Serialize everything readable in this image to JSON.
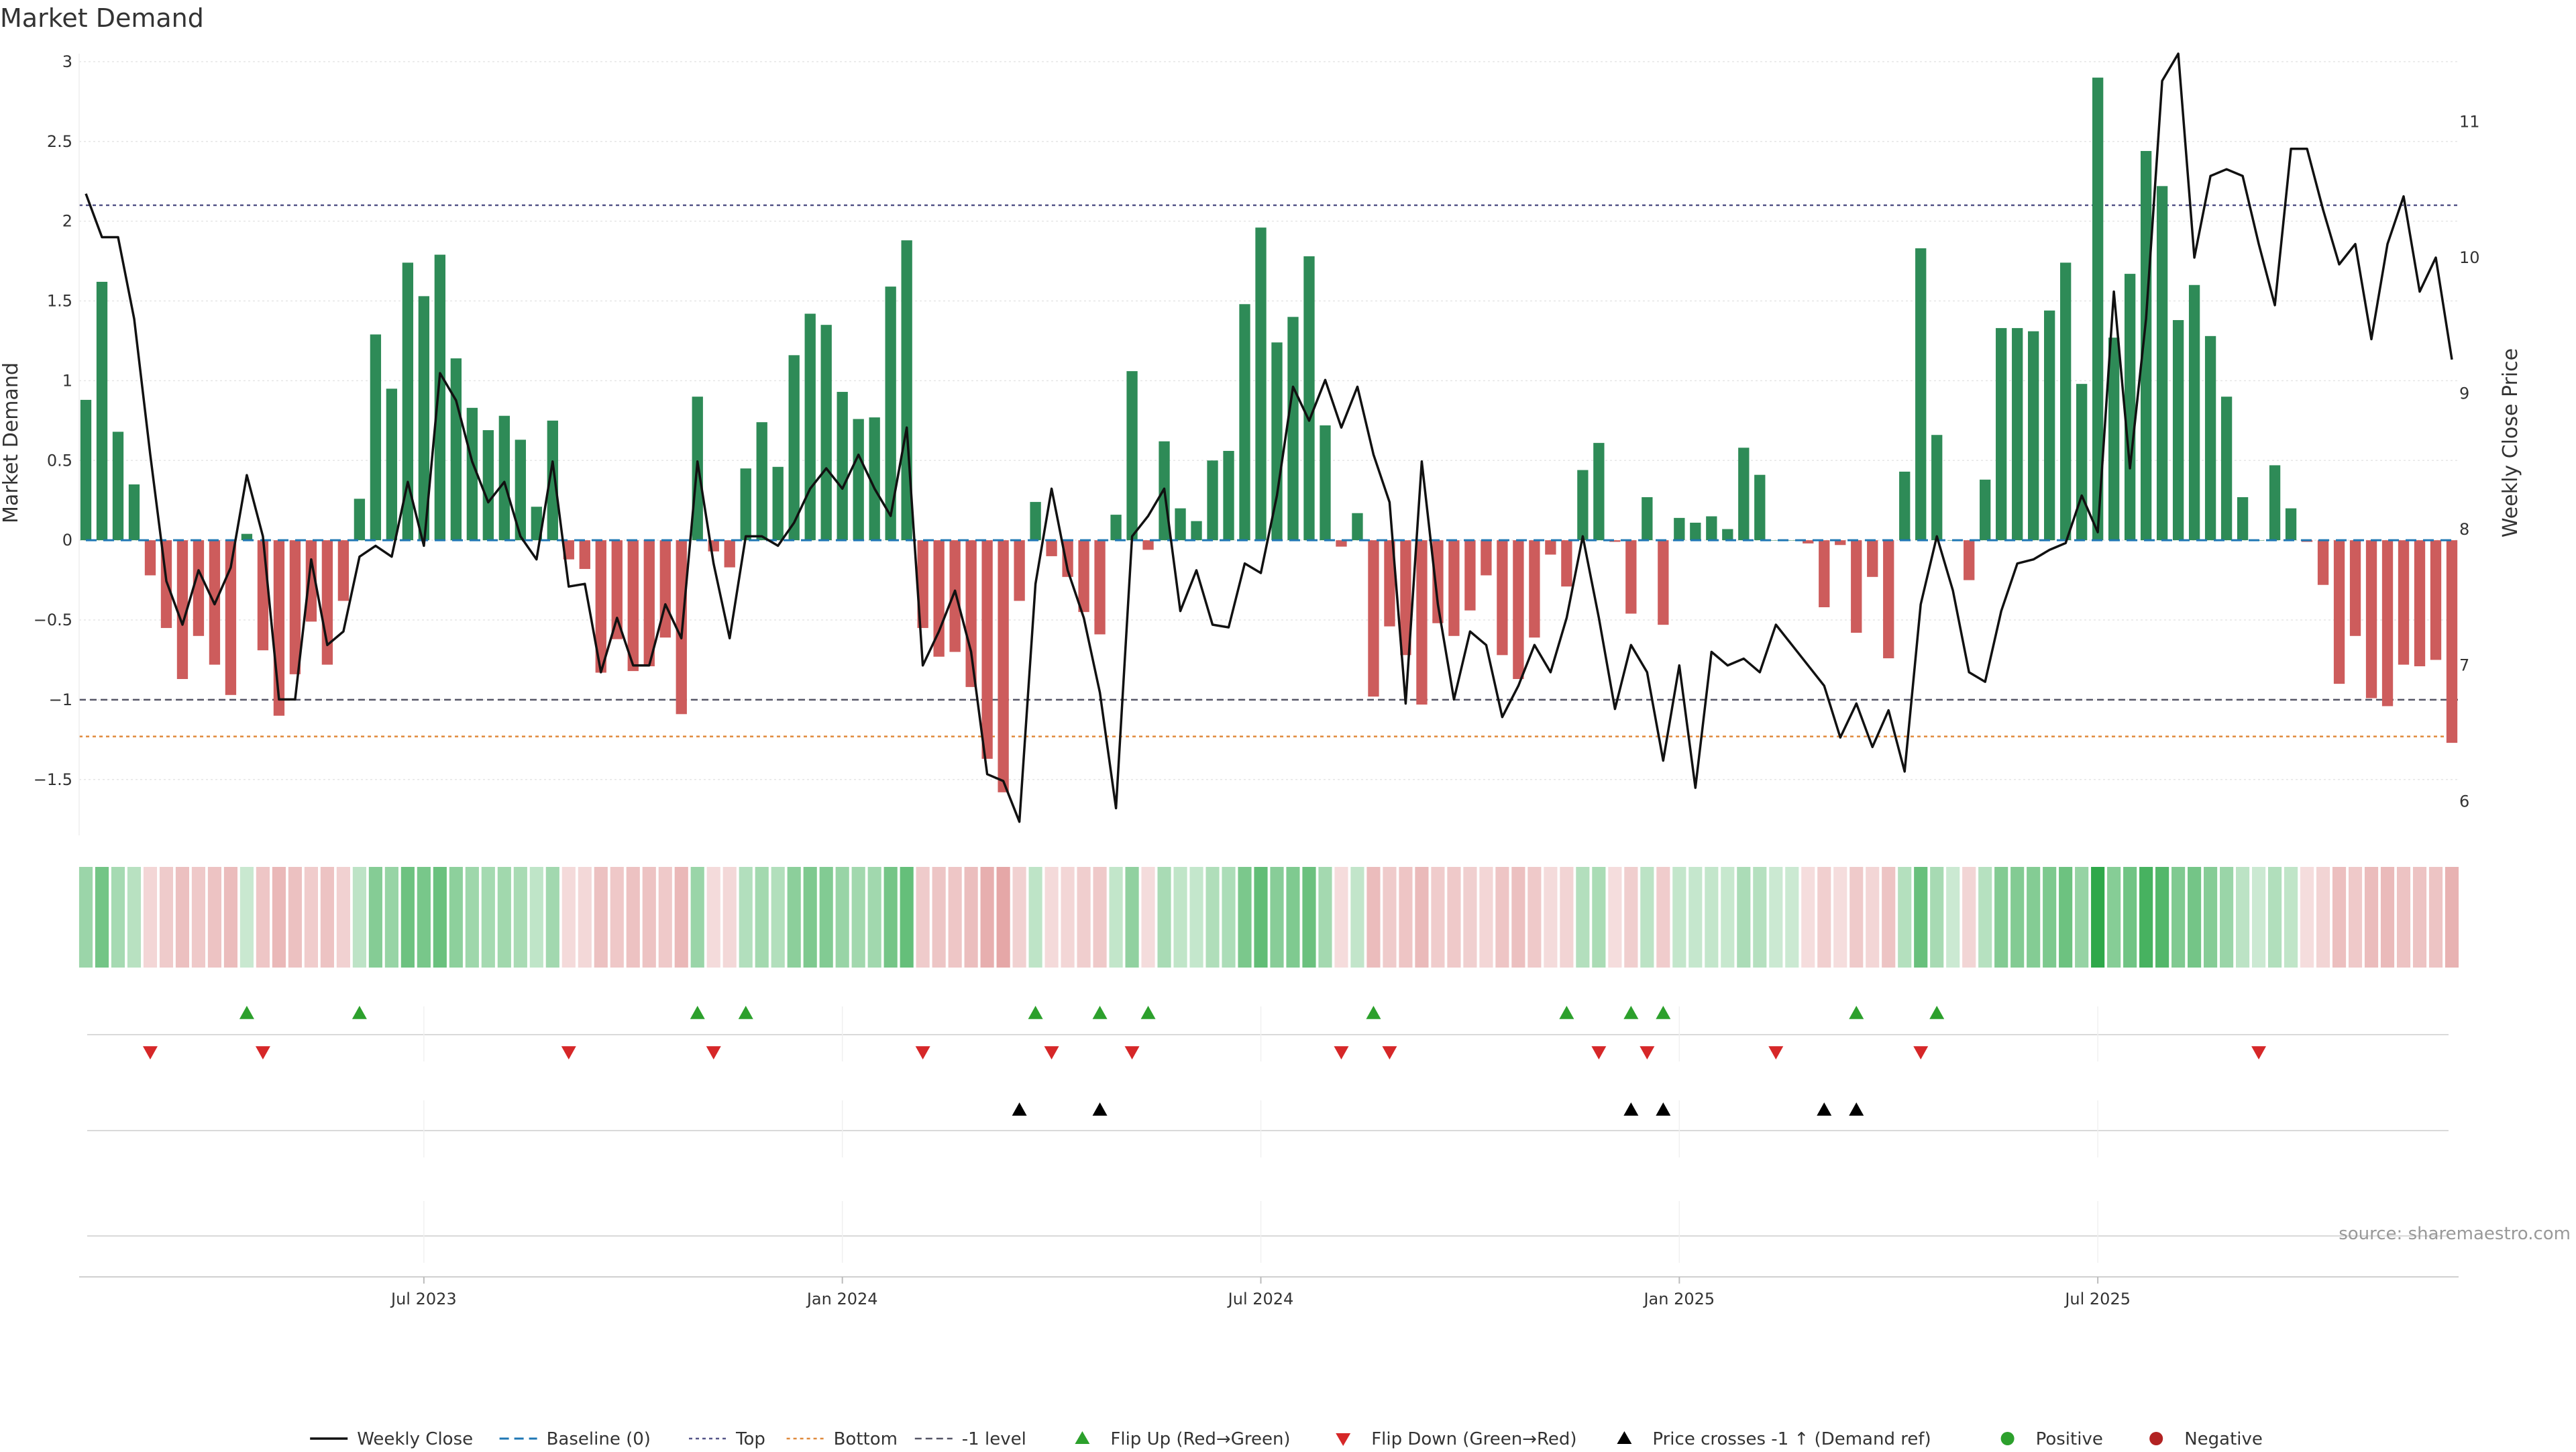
{
  "chart_data": {
    "type": "bar",
    "title": "Market Demand",
    "ylabel": "Market Demand",
    "y2label": "Weekly Close Price",
    "source": "source: sharemaestro.com",
    "ylim": [
      -1.85,
      3.05
    ],
    "y2lim": [
      5.75,
      11.5
    ],
    "yticks": [
      3,
      2.5,
      2,
      1.5,
      1,
      0.5,
      0,
      -0.5,
      -1,
      -1.5
    ],
    "ytick_labels": [
      "3",
      "2.5",
      "2",
      "1.5",
      "1",
      "0.5",
      "0",
      "−0.5",
      "−1",
      "−1.5"
    ],
    "y2ticks": [
      11,
      10,
      9,
      8,
      7,
      6
    ],
    "y2tick_labels": [
      "11",
      "10",
      "9",
      "8",
      "7",
      "6"
    ],
    "xticks": [
      {
        "week": 21,
        "label": "Jul 2023"
      },
      {
        "week": 47,
        "label": "Jan 2024"
      },
      {
        "week": 73,
        "label": "Jul 2024"
      },
      {
        "week": 99,
        "label": "Jan 2025"
      },
      {
        "week": 125,
        "label": "Jul 2025"
      }
    ],
    "reference_lines": {
      "top": 2.1,
      "bottom": -1.23,
      "minus_one": -1.0,
      "baseline": 0
    },
    "colors": {
      "positive": "#2e8b57",
      "negative": "#cd5c5c",
      "price": "#111111",
      "baseline": "#1f77b4",
      "top": "#555588",
      "bottom": "#e08a3c",
      "minus_one": "#555566",
      "flip_up": "#2ca02c",
      "flip_down": "#d62728",
      "cross": "#000000",
      "positive_dot": "#2ca02c",
      "negative_dot": "#b22222"
    },
    "demand": [
      0.88,
      1.62,
      0.68,
      0.35,
      -0.22,
      -0.55,
      -0.87,
      -0.6,
      -0.78,
      -0.97,
      0.04,
      -0.69,
      -1.1,
      -0.84,
      -0.51,
      -0.78,
      -0.38,
      0.26,
      1.29,
      0.95,
      1.74,
      1.53,
      1.79,
      1.14,
      0.83,
      0.69,
      0.78,
      0.63,
      0.21,
      0.75,
      -0.12,
      -0.18,
      -0.83,
      -0.62,
      -0.82,
      -0.79,
      -0.61,
      -1.09,
      0.9,
      -0.07,
      -0.17,
      0.45,
      0.74,
      0.46,
      1.16,
      1.42,
      1.35,
      0.93,
      0.76,
      0.77,
      1.59,
      1.88,
      -0.55,
      -0.73,
      -0.7,
      -0.92,
      -1.37,
      -1.58,
      -0.38,
      0.24,
      -0.1,
      -0.23,
      -0.45,
      -0.59,
      0.16,
      1.06,
      -0.06,
      0.62,
      0.2,
      0.12,
      0.5,
      0.56,
      1.48,
      1.96,
      1.24,
      1.4,
      1.78,
      0.72,
      -0.04,
      0.17,
      -0.98,
      -0.54,
      -0.72,
      -1.03,
      -0.52,
      -0.6,
      -0.44,
      -0.22,
      -0.72,
      -0.87,
      -0.61,
      -0.09,
      -0.29,
      0.44,
      0.61,
      -0.01,
      -0.46,
      0.27,
      -0.53,
      0.14,
      0.11,
      0.15,
      0.07,
      0.58,
      0.41,
      0.0,
      0.0,
      -0.02,
      -0.42,
      -0.03,
      -0.58,
      -0.23,
      -0.74,
      0.43,
      1.83,
      0.66,
      0.0,
      -0.25,
      0.38,
      1.33,
      1.33,
      1.31,
      1.44,
      1.74,
      0.98,
      2.9,
      1.27,
      1.67,
      2.44,
      2.22,
      1.38,
      1.6,
      1.28,
      0.9,
      0.27,
      0.0,
      0.47,
      0.2,
      -0.01,
      -0.28,
      -0.9,
      -0.6,
      -0.99,
      -1.04,
      -0.78,
      -0.79,
      -0.75,
      -1.27
    ],
    "close": [
      10.47,
      10.15,
      10.15,
      9.55,
      8.55,
      7.62,
      7.3,
      7.7,
      7.45,
      7.72,
      8.4,
      7.95,
      6.75,
      6.75,
      7.78,
      7.15,
      7.25,
      7.8,
      7.88,
      7.8,
      8.35,
      7.88,
      9.15,
      8.95,
      8.5,
      8.2,
      8.35,
      7.95,
      7.78,
      8.5,
      7.58,
      7.6,
      6.95,
      7.35,
      7.0,
      7.0,
      7.45,
      7.2,
      8.5,
      7.75,
      7.2,
      7.95,
      7.95,
      7.88,
      8.05,
      8.3,
      8.45,
      8.3,
      8.55,
      8.3,
      8.1,
      8.75,
      7.0,
      7.25,
      7.55,
      7.1,
      6.2,
      6.15,
      5.85,
      7.6,
      8.3,
      7.7,
      7.35,
      6.8,
      5.95,
      7.95,
      8.1,
      8.3,
      7.4,
      7.7,
      7.3,
      7.28,
      7.75,
      7.68,
      8.25,
      9.05,
      8.8,
      9.1,
      8.75,
      9.05,
      8.55,
      8.2,
      6.72,
      8.5,
      7.45,
      6.75,
      7.25,
      7.15,
      6.62,
      6.85,
      7.15,
      6.95,
      7.35,
      7.95,
      7.35,
      6.68,
      7.15,
      6.95,
      6.3,
      7.0,
      6.1,
      7.1,
      7.0,
      7.05,
      6.95,
      7.3,
      7.15,
      7.0,
      6.85,
      6.47,
      6.72,
      6.4,
      6.67,
      6.22,
      7.45,
      7.95,
      7.55,
      6.95,
      6.88,
      7.4,
      7.75,
      7.78,
      7.85,
      7.9,
      8.25,
      7.98,
      9.75,
      8.45,
      9.55,
      11.3,
      11.5,
      10.0,
      10.6,
      10.65,
      10.6,
      10.1,
      9.65,
      10.8,
      10.8,
      10.35,
      9.95,
      10.1,
      9.4,
      10.1,
      10.45,
      9.75,
      10.0,
      9.25
    ],
    "flip_up_weeks": [
      10,
      17,
      38,
      41,
      59,
      63,
      66,
      80,
      92,
      96,
      98,
      110,
      115
    ],
    "flip_down_weeks": [
      4,
      11,
      30,
      39,
      52,
      60,
      65,
      78,
      81,
      94,
      97,
      105,
      114,
      135
    ],
    "cross_weeks": [
      58,
      63,
      96,
      98,
      108,
      110
    ],
    "legend": [
      {
        "key": "weekly_close",
        "label": "Weekly Close"
      },
      {
        "key": "baseline",
        "label": "Baseline (0)"
      },
      {
        "key": "top",
        "label": "Top"
      },
      {
        "key": "bottom",
        "label": "Bottom"
      },
      {
        "key": "minus_one",
        "label": "-1 level"
      },
      {
        "key": "flip_up",
        "label": "Flip Up (Red→Green)"
      },
      {
        "key": "flip_down",
        "label": "Flip Down (Green→Red)"
      },
      {
        "key": "cross",
        "label": "Price crosses -1 ↑ (Demand ref)"
      },
      {
        "key": "positive",
        "label": "Positive"
      },
      {
        "key": "negative",
        "label": "Negative"
      }
    ]
  }
}
